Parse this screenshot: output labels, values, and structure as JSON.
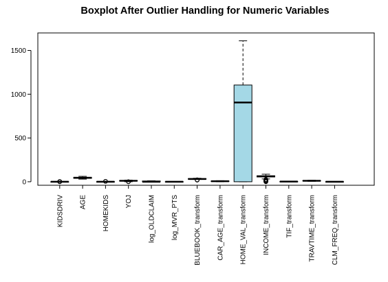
{
  "chart_data": {
    "type": "boxplot",
    "title": "Boxplot After Outlier Handling for Numeric Variables",
    "xlabel": "",
    "ylabel": "",
    "ylim": [
      -40,
      1700
    ],
    "yticks": [
      0,
      500,
      1000,
      1500
    ],
    "grid": false,
    "legend": "none",
    "box_fill": "#a4d8e6",
    "categories": [
      "KIDSDRIV",
      "AGE",
      "HOMEKIDS",
      "YOJ",
      "log_OLDCLAIM",
      "log_MVR_PTS",
      "BLUEBOOK_transform",
      "CAR_AGE_transform",
      "HOME_VAL_transform",
      "INCOME_transform",
      "TIF_transform",
      "TRAVTIME_transform",
      "CLM_FREQ_transform"
    ],
    "boxes": [
      {
        "whisker_low": 0,
        "q1": 0,
        "median": 0,
        "q3": 0,
        "whisker_high": 0,
        "outliers": [
          0,
          1,
          2,
          3
        ]
      },
      {
        "whisker_low": 30,
        "q1": 39,
        "median": 45,
        "q3": 51,
        "whisker_high": 62,
        "outliers": []
      },
      {
        "whisker_low": 0,
        "q1": 0,
        "median": 0,
        "q3": 1,
        "whisker_high": 3,
        "outliers": [
          4,
          5
        ]
      },
      {
        "whisker_low": 0,
        "q1": 9,
        "median": 11,
        "q3": 13,
        "whisker_high": 19,
        "outliers": [
          0,
          1
        ]
      },
      {
        "whisker_low": 0,
        "q1": 0,
        "median": 0,
        "q3": 9,
        "whisker_high": 11,
        "outliers": []
      },
      {
        "whisker_low": 0,
        "q1": 0,
        "median": 0,
        "q3": 1,
        "whisker_high": 3,
        "outliers": []
      },
      {
        "whisker_low": 26,
        "q1": 29,
        "median": 32,
        "q3": 36,
        "whisker_high": 40,
        "outliers": [
          18,
          22
        ]
      },
      {
        "whisker_low": 0,
        "q1": 3,
        "median": 6,
        "q3": 8,
        "whisker_high": 12,
        "outliers": []
      },
      {
        "whisker_low": 0,
        "q1": 0,
        "median": 905,
        "q3": 1105,
        "whisker_high": 1610,
        "outliers": []
      },
      {
        "whisker_low": 32,
        "q1": 55,
        "median": 62,
        "q3": 68,
        "whisker_high": 86,
        "outliers": [
          0,
          3,
          6,
          10,
          14,
          20,
          26
        ]
      },
      {
        "whisker_low": 0,
        "q1": 1,
        "median": 2,
        "q3": 3,
        "whisker_high": 4,
        "outliers": []
      },
      {
        "whisker_low": 5,
        "q1": 9,
        "median": 11,
        "q3": 13,
        "whisker_high": 17,
        "outliers": []
      },
      {
        "whisker_low": 0,
        "q1": 0,
        "median": 0,
        "q3": 1,
        "whisker_high": 2,
        "outliers": []
      }
    ]
  }
}
